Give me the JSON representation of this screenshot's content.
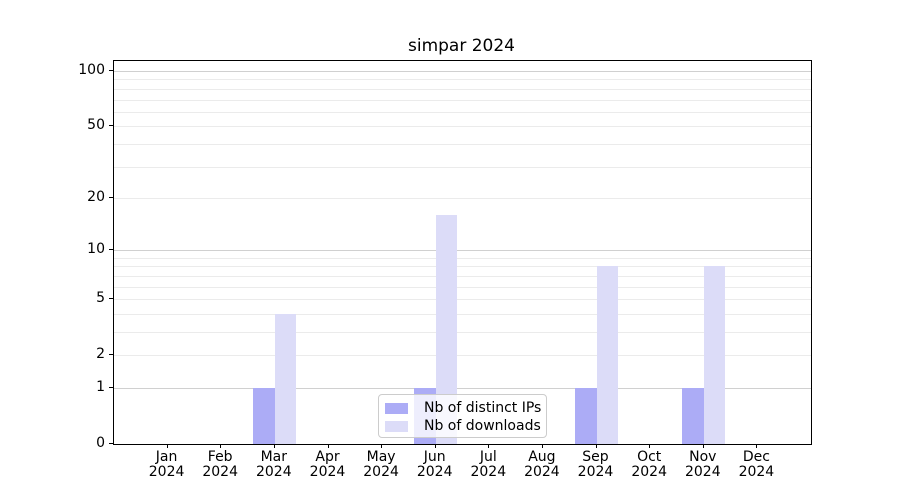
{
  "figure": {
    "title": "simpar 2024"
  },
  "chart_data": {
    "type": "bar",
    "title": "simpar 2024",
    "categories": [
      "Jan",
      "Feb",
      "Mar",
      "Apr",
      "May",
      "Jun",
      "Jul",
      "Aug",
      "Sep",
      "Oct",
      "Nov",
      "Dec"
    ],
    "year_label": "2024",
    "series": [
      {
        "name": "Nb of distinct IPs",
        "color": "#acacf6",
        "values": [
          0,
          0,
          1,
          0,
          0,
          1,
          0,
          0,
          1,
          0,
          1,
          0
        ]
      },
      {
        "name": "Nb of downloads",
        "color": "#dcdcf8",
        "values": [
          0,
          0,
          4,
          0,
          0,
          16,
          0,
          0,
          8,
          0,
          8,
          0
        ]
      }
    ],
    "yscale": "log1p",
    "ylim": [
      0,
      115
    ],
    "yticks": [
      0,
      1,
      2,
      5,
      10,
      20,
      50,
      100
    ],
    "major_gridlines": [
      1,
      10,
      100
    ],
    "minor_gridlines": [
      2,
      3,
      4,
      5,
      6,
      7,
      8,
      9,
      20,
      30,
      40,
      50,
      60,
      70,
      80,
      90
    ],
    "grid": true,
    "legend_position": "bottom-center",
    "colors": {
      "axis": "#000000",
      "grid_minor": "#ebebeb",
      "grid_major": "#d0d0d0",
      "legend_border": "#cccccc"
    }
  }
}
